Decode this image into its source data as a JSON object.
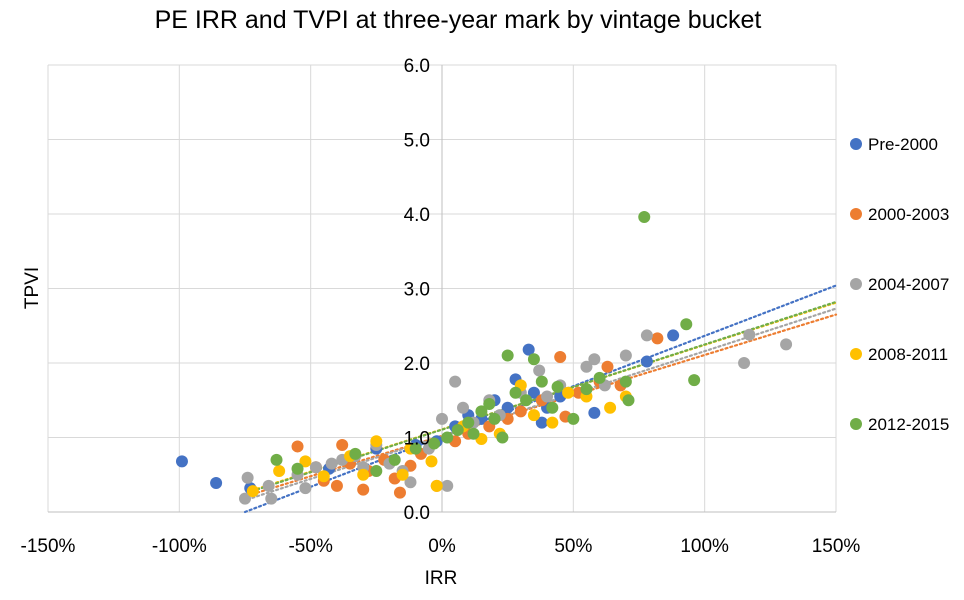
{
  "chart_data": {
    "type": "scatter",
    "title": "PE IRR and TVPI at three-year mark by vintage bucket",
    "xlabel": "IRR",
    "ylabel": "TPVI",
    "xlim": [
      -1.5,
      1.5
    ],
    "ylim": [
      0,
      6
    ],
    "x_ticks": [
      {
        "value": -1.5,
        "label": "-150%"
      },
      {
        "value": -1.0,
        "label": "-100%"
      },
      {
        "value": -0.5,
        "label": "-50%"
      },
      {
        "value": 0.0,
        "label": "0%"
      },
      {
        "value": 0.5,
        "label": "50%"
      },
      {
        "value": 1.0,
        "label": "100%"
      },
      {
        "value": 1.5,
        "label": "150%"
      }
    ],
    "y_ticks": [
      {
        "value": 0,
        "label": "0.0"
      },
      {
        "value": 1,
        "label": "1.0"
      },
      {
        "value": 2,
        "label": "2.0"
      },
      {
        "value": 3,
        "label": "3.0"
      },
      {
        "value": 4,
        "label": "4.0"
      },
      {
        "value": 5,
        "label": "5.0"
      },
      {
        "value": 6,
        "label": "6.0"
      }
    ],
    "grid": true,
    "legend_position": "right",
    "trendlines": "linear, dotted, one per series",
    "series": [
      {
        "name": "Pre-2000",
        "color": "#4472C4",
        "points": [
          [
            -0.99,
            0.68
          ],
          [
            -0.86,
            0.39
          ],
          [
            -0.73,
            0.32
          ],
          [
            -0.43,
            0.58
          ],
          [
            -0.25,
            0.85
          ],
          [
            -0.1,
            0.9
          ],
          [
            -0.02,
            0.95
          ],
          [
            0.05,
            1.15
          ],
          [
            0.1,
            1.3
          ],
          [
            0.15,
            1.25
          ],
          [
            0.2,
            1.5
          ],
          [
            0.25,
            1.4
          ],
          [
            0.28,
            1.78
          ],
          [
            0.33,
            2.18
          ],
          [
            0.35,
            1.6
          ],
          [
            0.38,
            1.2
          ],
          [
            0.4,
            1.4
          ],
          [
            0.45,
            1.55
          ],
          [
            0.58,
            1.33
          ],
          [
            0.78,
            2.02
          ],
          [
            0.88,
            2.37
          ]
        ],
        "trend": [
          [
            -0.75,
            0.0
          ],
          [
            1.5,
            3.04
          ]
        ]
      },
      {
        "name": "2000-2003",
        "color": "#ED7D31",
        "points": [
          [
            -0.55,
            0.88
          ],
          [
            -0.48,
            0.6
          ],
          [
            -0.45,
            0.42
          ],
          [
            -0.4,
            0.35
          ],
          [
            -0.38,
            0.9
          ],
          [
            -0.35,
            0.65
          ],
          [
            -0.3,
            0.3
          ],
          [
            -0.28,
            0.55
          ],
          [
            -0.22,
            0.7
          ],
          [
            -0.18,
            0.45
          ],
          [
            -0.16,
            0.26
          ],
          [
            -0.12,
            0.62
          ],
          [
            -0.08,
            0.78
          ],
          [
            -0.02,
            0.35
          ],
          [
            0.05,
            0.95
          ],
          [
            0.1,
            1.05
          ],
          [
            0.18,
            1.15
          ],
          [
            0.25,
            1.25
          ],
          [
            0.3,
            1.35
          ],
          [
            0.38,
            1.5
          ],
          [
            0.45,
            2.08
          ],
          [
            0.47,
            1.28
          ],
          [
            0.52,
            1.6
          ],
          [
            0.6,
            1.75
          ],
          [
            0.63,
            1.95
          ],
          [
            0.68,
            1.7
          ],
          [
            0.82,
            2.33
          ]
        ],
        "trend": [
          [
            -0.74,
            0.22
          ],
          [
            1.5,
            2.65
          ]
        ]
      },
      {
        "name": "2004-2007",
        "color": "#A5A5A5",
        "points": [
          [
            -0.75,
            0.18
          ],
          [
            -0.74,
            0.46
          ],
          [
            -0.66,
            0.35
          ],
          [
            -0.65,
            0.18
          ],
          [
            -0.55,
            0.5
          ],
          [
            -0.52,
            0.32
          ],
          [
            -0.48,
            0.6
          ],
          [
            -0.42,
            0.65
          ],
          [
            -0.38,
            0.7
          ],
          [
            -0.33,
            0.75
          ],
          [
            -0.3,
            0.6
          ],
          [
            -0.25,
            0.9
          ],
          [
            -0.2,
            0.65
          ],
          [
            -0.15,
            0.55
          ],
          [
            -0.12,
            0.4
          ],
          [
            -0.05,
            0.85
          ],
          [
            0.0,
            1.25
          ],
          [
            0.02,
            0.35
          ],
          [
            0.05,
            1.75
          ],
          [
            0.08,
            1.4
          ],
          [
            0.12,
            1.2
          ],
          [
            0.18,
            1.5
          ],
          [
            0.22,
            1.3
          ],
          [
            0.3,
            1.6
          ],
          [
            0.37,
            1.9
          ],
          [
            0.4,
            1.55
          ],
          [
            0.45,
            1.7
          ],
          [
            0.55,
            1.95
          ],
          [
            0.58,
            2.05
          ],
          [
            0.62,
            1.7
          ],
          [
            0.7,
            2.1
          ],
          [
            0.78,
            2.37
          ],
          [
            1.15,
            2.0
          ],
          [
            1.17,
            2.38
          ],
          [
            1.31,
            2.25
          ]
        ],
        "trend": [
          [
            -0.74,
            0.17
          ],
          [
            1.5,
            2.73
          ]
        ]
      },
      {
        "name": "2008-2011",
        "color": "#FFC000",
        "points": [
          [
            -0.72,
            0.28
          ],
          [
            -0.62,
            0.55
          ],
          [
            -0.52,
            0.68
          ],
          [
            -0.45,
            0.48
          ],
          [
            -0.35,
            0.75
          ],
          [
            -0.3,
            0.5
          ],
          [
            -0.25,
            0.95
          ],
          [
            -0.15,
            0.5
          ],
          [
            -0.12,
            0.85
          ],
          [
            -0.04,
            0.68
          ],
          [
            -0.02,
            0.35
          ],
          [
            0.08,
            1.15
          ],
          [
            0.15,
            0.98
          ],
          [
            0.22,
            1.05
          ],
          [
            0.3,
            1.7
          ],
          [
            0.35,
            1.3
          ],
          [
            0.42,
            1.2
          ],
          [
            0.48,
            1.6
          ],
          [
            0.55,
            1.55
          ],
          [
            0.64,
            1.4
          ],
          [
            0.7,
            1.55
          ]
        ],
        "trend": [
          [
            -0.74,
            0.27
          ],
          [
            1.5,
            2.81
          ]
        ]
      },
      {
        "name": "2012-2015",
        "color": "#70AD47",
        "points": [
          [
            -0.63,
            0.7
          ],
          [
            -0.55,
            0.58
          ],
          [
            -0.33,
            0.78
          ],
          [
            -0.25,
            0.55
          ],
          [
            -0.18,
            0.7
          ],
          [
            -0.1,
            0.85
          ],
          [
            -0.03,
            0.92
          ],
          [
            0.02,
            1.0
          ],
          [
            0.06,
            1.1
          ],
          [
            0.1,
            1.2
          ],
          [
            0.12,
            1.05
          ],
          [
            0.15,
            1.35
          ],
          [
            0.18,
            1.45
          ],
          [
            0.2,
            1.25
          ],
          [
            0.23,
            1.0
          ],
          [
            0.25,
            2.1
          ],
          [
            0.28,
            1.6
          ],
          [
            0.32,
            1.5
          ],
          [
            0.35,
            2.05
          ],
          [
            0.38,
            1.75
          ],
          [
            0.42,
            1.4
          ],
          [
            0.44,
            1.68
          ],
          [
            0.5,
            1.25
          ],
          [
            0.55,
            1.65
          ],
          [
            0.6,
            1.8
          ],
          [
            0.7,
            1.75
          ],
          [
            0.71,
            1.5
          ],
          [
            0.77,
            3.96
          ],
          [
            0.93,
            2.52
          ],
          [
            0.96,
            1.77
          ]
        ],
        "trend": [
          [
            -0.74,
            0.26
          ],
          [
            1.5,
            2.82
          ]
        ]
      }
    ]
  }
}
